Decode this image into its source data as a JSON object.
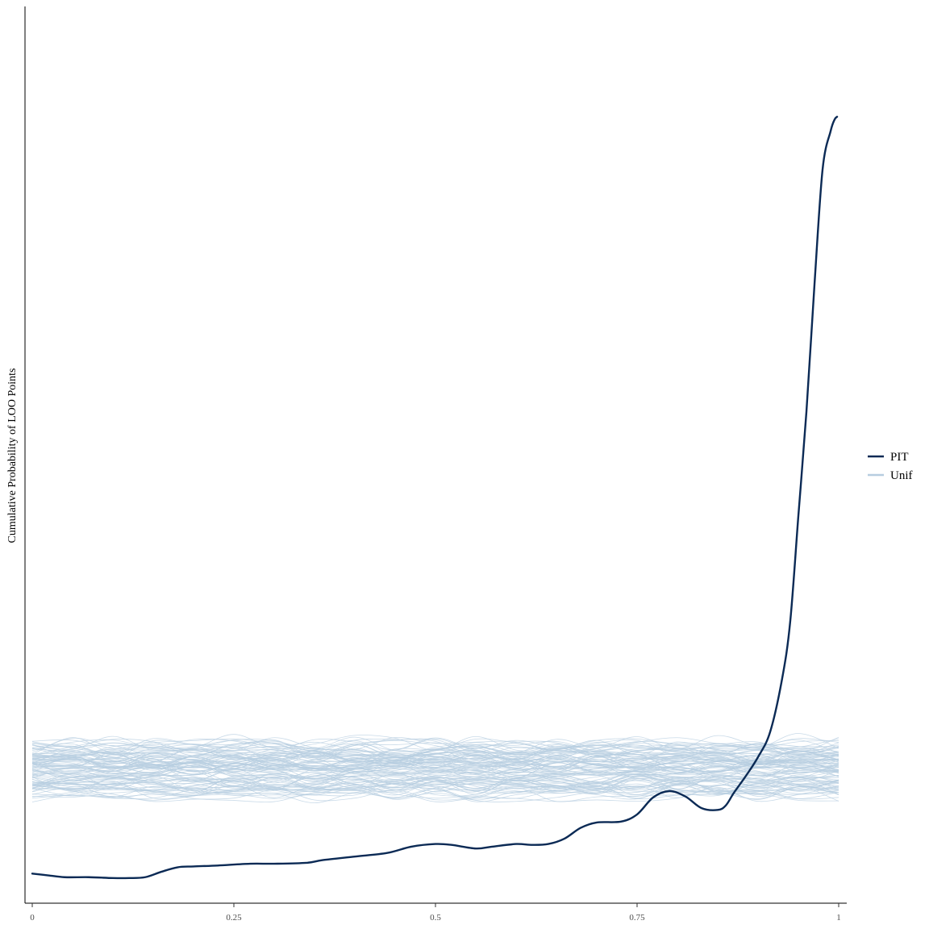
{
  "chart_data": {
    "type": "line",
    "title": "",
    "xlabel": "",
    "ylabel": "Cumulative Probability of LOO Points",
    "xlim": [
      0,
      1
    ],
    "ylim": [
      0,
      1
    ],
    "x_ticks": [
      "0",
      "0.25",
      "0.5",
      "0.75",
      "1"
    ],
    "x_tick_values": [
      0,
      0.25,
      0.5,
      0.75,
      1
    ],
    "show_y_ticks": false,
    "grid": false,
    "legend_position": "right",
    "colors": {
      "PIT": "#0b2a55",
      "Unif": "#b7cde0"
    },
    "series": [
      {
        "name": "PIT",
        "x": [
          0,
          0.02,
          0.04,
          0.07,
          0.1,
          0.12,
          0.14,
          0.16,
          0.18,
          0.2,
          0.23,
          0.27,
          0.3,
          0.34,
          0.36,
          0.4,
          0.44,
          0.47,
          0.5,
          0.52,
          0.55,
          0.57,
          0.6,
          0.62,
          0.64,
          0.66,
          0.68,
          0.7,
          0.73,
          0.75,
          0.77,
          0.79,
          0.81,
          0.83,
          0.85,
          0.86,
          0.87,
          0.885,
          0.9,
          0.915,
          0.93,
          0.94,
          0.95,
          0.96,
          0.97,
          0.98,
          0.99,
          0.995,
          0.998
        ],
        "y": [
          0.033,
          0.031,
          0.029,
          0.029,
          0.028,
          0.028,
          0.029,
          0.035,
          0.04,
          0.041,
          0.042,
          0.044,
          0.044,
          0.045,
          0.048,
          0.052,
          0.056,
          0.063,
          0.066,
          0.065,
          0.061,
          0.063,
          0.066,
          0.065,
          0.066,
          0.072,
          0.084,
          0.09,
          0.091,
          0.099,
          0.118,
          0.125,
          0.119,
          0.106,
          0.104,
          0.109,
          0.123,
          0.142,
          0.163,
          0.191,
          0.251,
          0.315,
          0.432,
          0.548,
          0.69,
          0.818,
          0.861,
          0.874,
          0.877
        ]
      },
      {
        "name": "Unif",
        "x": [
          0,
          0.05,
          0.1,
          0.15,
          0.2,
          0.25,
          0.3,
          0.35,
          0.4,
          0.45,
          0.5,
          0.55,
          0.6,
          0.65,
          0.7,
          0.75,
          0.8,
          0.85,
          0.9,
          0.95,
          1
        ],
        "center_y": 0.15,
        "band_halfwidth": 0.03,
        "replicates": 100
      }
    ]
  }
}
